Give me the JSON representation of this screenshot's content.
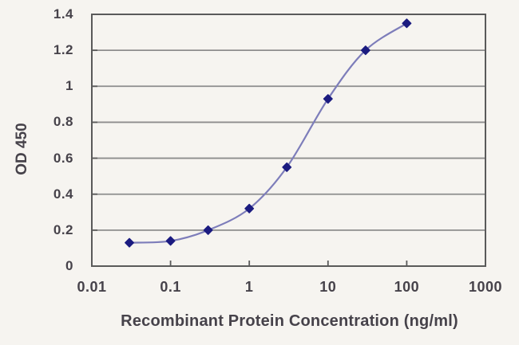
{
  "chart_data": {
    "type": "line",
    "title": "",
    "xlabel": "Recombinant Protein Concentration (ng/ml)",
    "ylabel": "OD 450",
    "x_scale": "log",
    "y_scale": "linear",
    "xlim": [
      0.01,
      1000
    ],
    "ylim": [
      0,
      1.4
    ],
    "x": [
      0.03,
      0.1,
      0.3,
      1,
      3,
      10,
      30,
      100
    ],
    "y": [
      0.13,
      0.14,
      0.2,
      0.32,
      0.55,
      0.93,
      1.2,
      1.35
    ],
    "x_ticks": [
      {
        "value": 0.01,
        "label": "0.01"
      },
      {
        "value": 0.1,
        "label": "0.1"
      },
      {
        "value": 1,
        "label": "1"
      },
      {
        "value": 10,
        "label": "10"
      },
      {
        "value": 100,
        "label": "100"
      },
      {
        "value": 1000,
        "label": "1000"
      }
    ],
    "y_ticks": [
      {
        "value": 0,
        "label": "0"
      },
      {
        "value": 0.2,
        "label": "0.2"
      },
      {
        "value": 0.4,
        "label": "0.4"
      },
      {
        "value": 0.6,
        "label": "0.6"
      },
      {
        "value": 0.8,
        "label": "0.8"
      },
      {
        "value": 1,
        "label": "1"
      },
      {
        "value": 1.2,
        "label": "1.2"
      },
      {
        "value": 1.4,
        "label": "1.4"
      }
    ],
    "grid": "horizontal",
    "legend": "none",
    "marker": "diamond",
    "colors": {
      "line": "#7d7dba",
      "marker": "#1b1b80",
      "grid": "#8d8d8d",
      "axis": "#5a5a5a",
      "text": "#46424a",
      "background": "#f6f4f0"
    }
  }
}
